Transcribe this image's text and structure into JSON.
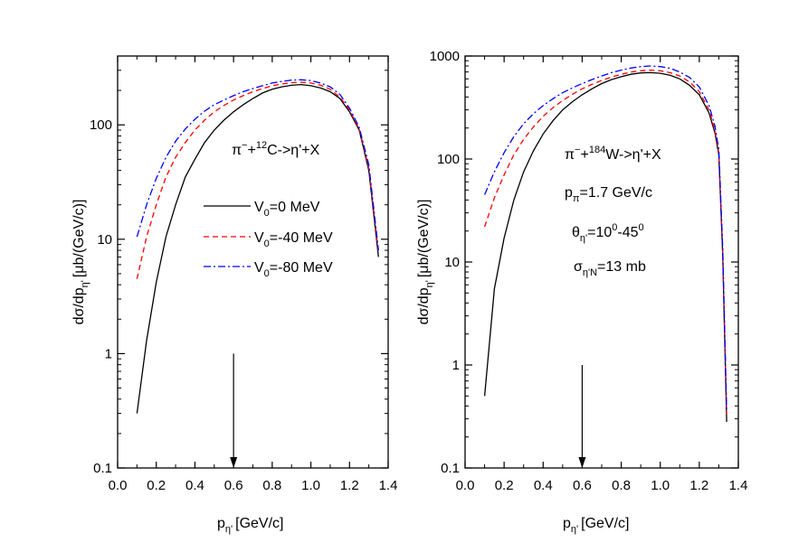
{
  "chart_data": [
    {
      "type": "line",
      "xlabel": "p",
      "xlabel_sub": "η'",
      "xlabel_unit": "[GeV/c]",
      "ylabel": "dσ/dp",
      "ylabel_sub": "η'",
      "ylabel_unit": "[μb/(GeV/c)]",
      "xlim": [
        0.0,
        1.4
      ],
      "ylim": [
        0.1,
        400
      ],
      "yscale": "log",
      "grid": false,
      "x_ticks": [
        "0.0",
        "0.2",
        "0.4",
        "0.6",
        "0.8",
        "1.0",
        "1.2",
        "1.4"
      ],
      "x_tick_values": [
        0.0,
        0.2,
        0.4,
        0.6,
        0.8,
        1.0,
        1.2,
        1.4
      ],
      "y_ticks": [
        "0.1",
        "1",
        "10",
        "100"
      ],
      "y_tick_values": [
        0.1,
        1,
        10,
        100
      ],
      "arrow": {
        "x": 0.6,
        "from_y": 1.0,
        "to_y": 0.1
      },
      "reaction": {
        "p1": "π",
        "p1_sup": "−",
        "p2": "+",
        "p2_sup": "12",
        "p3": "C->η'+X"
      },
      "legend_position": "center",
      "series": [
        {
          "name": "V",
          "name_sub": "0",
          "name_rest": "=0 MeV",
          "color": "#000000",
          "dash": "solid",
          "x": [
            0.1,
            0.15,
            0.2,
            0.25,
            0.3,
            0.35,
            0.4,
            0.45,
            0.5,
            0.55,
            0.6,
            0.65,
            0.7,
            0.75,
            0.8,
            0.85,
            0.9,
            0.95,
            1.0,
            1.05,
            1.1,
            1.15,
            1.2,
            1.25,
            1.3,
            1.35
          ],
          "values": [
            0.3,
            1.3,
            4.2,
            10.5,
            20,
            35,
            50,
            70,
            90,
            110,
            130,
            150,
            170,
            190,
            205,
            215,
            222,
            225,
            220,
            210,
            195,
            170,
            130,
            90,
            40,
            7
          ]
        },
        {
          "name": "V",
          "name_sub": "0",
          "name_rest": "=-40 MeV",
          "color": "#ff0000",
          "dash": "dashed",
          "x": [
            0.1,
            0.15,
            0.2,
            0.25,
            0.3,
            0.35,
            0.4,
            0.45,
            0.5,
            0.55,
            0.6,
            0.65,
            0.7,
            0.75,
            0.8,
            0.85,
            0.9,
            0.95,
            1.0,
            1.05,
            1.1,
            1.15,
            1.2,
            1.25,
            1.3,
            1.35
          ],
          "values": [
            4.5,
            10.5,
            20,
            35,
            52,
            70,
            90,
            110,
            130,
            148,
            165,
            180,
            195,
            208,
            220,
            228,
            234,
            236,
            232,
            222,
            205,
            175,
            135,
            92,
            42,
            7.5
          ]
        },
        {
          "name": "V",
          "name_sub": "0",
          "name_rest": "=-80 MeV",
          "color": "#0000ff",
          "dash": "dashdot",
          "x": [
            0.1,
            0.15,
            0.2,
            0.25,
            0.3,
            0.35,
            0.4,
            0.45,
            0.5,
            0.55,
            0.6,
            0.65,
            0.7,
            0.75,
            0.8,
            0.85,
            0.9,
            0.95,
            1.0,
            1.05,
            1.1,
            1.15,
            1.2,
            1.25,
            1.3,
            1.35
          ],
          "values": [
            10.5,
            20,
            34,
            52,
            72,
            92,
            112,
            132,
            150,
            165,
            180,
            195,
            208,
            220,
            232,
            240,
            246,
            248,
            244,
            232,
            215,
            185,
            140,
            95,
            45,
            8
          ]
        }
      ]
    },
    {
      "type": "line",
      "xlabel": "p",
      "xlabel_sub": "η'",
      "xlabel_unit": "[GeV/c]",
      "ylabel": "dσ/dp",
      "ylabel_sub": "η'",
      "ylabel_unit": "[μb/(GeV/c)]",
      "xlim": [
        0.0,
        1.4
      ],
      "ylim": [
        0.1,
        1000
      ],
      "yscale": "log",
      "grid": false,
      "x_ticks": [
        "0.0",
        "0.2",
        "0.4",
        "0.6",
        "0.8",
        "1.0",
        "1.2",
        "1.4"
      ],
      "x_tick_values": [
        0.0,
        0.2,
        0.4,
        0.6,
        0.8,
        1.0,
        1.2,
        1.4
      ],
      "y_ticks": [
        "0.1",
        "1",
        "10",
        "100",
        "1000"
      ],
      "y_tick_values": [
        0.1,
        1,
        10,
        100,
        1000
      ],
      "arrow": {
        "x": 0.6,
        "from_y": 1.0,
        "to_y": 0.1
      },
      "reaction": {
        "p1": "π",
        "p1_sup": "−",
        "p2": "+",
        "p2_sup": "184",
        "p3": "W->η'+X"
      },
      "annotations": [
        {
          "main": "p",
          "sub": "π",
          "rest": "=1.7 GeV/c"
        },
        {
          "main": "θ",
          "sub": "η'",
          "rest": "=10",
          "sup": "0",
          "rest2": "-45",
          "sup2": "0"
        },
        {
          "main": "σ",
          "sub": "η'N",
          "rest": "=13 mb"
        }
      ],
      "series": [
        {
          "color": "#000000",
          "dash": "solid",
          "x": [
            0.1,
            0.15,
            0.2,
            0.25,
            0.3,
            0.35,
            0.4,
            0.45,
            0.5,
            0.55,
            0.6,
            0.65,
            0.7,
            0.75,
            0.8,
            0.85,
            0.9,
            0.95,
            1.0,
            1.05,
            1.1,
            1.15,
            1.2,
            1.25,
            1.28,
            1.3,
            1.32,
            1.34
          ],
          "values": [
            0.5,
            5.5,
            17,
            40,
            75,
            120,
            175,
            235,
            300,
            360,
            420,
            480,
            540,
            590,
            630,
            665,
            685,
            690,
            680,
            650,
            600,
            520,
            420,
            280,
            180,
            110,
            12,
            0.28
          ]
        },
        {
          "color": "#ff0000",
          "dash": "dashed",
          "x": [
            0.1,
            0.15,
            0.2,
            0.25,
            0.3,
            0.35,
            0.4,
            0.45,
            0.5,
            0.55,
            0.6,
            0.65,
            0.7,
            0.75,
            0.8,
            0.85,
            0.9,
            0.95,
            1.0,
            1.05,
            1.1,
            1.15,
            1.2,
            1.25,
            1.28,
            1.3,
            1.32,
            1.34
          ],
          "values": [
            22,
            42,
            70,
            110,
            155,
            205,
            260,
            315,
            370,
            425,
            480,
            530,
            580,
            625,
            665,
            700,
            720,
            730,
            720,
            690,
            640,
            560,
            450,
            300,
            190,
            115,
            13,
            0.33
          ]
        },
        {
          "color": "#0000ff",
          "dash": "dashdot",
          "x": [
            0.1,
            0.15,
            0.2,
            0.25,
            0.3,
            0.35,
            0.4,
            0.45,
            0.5,
            0.55,
            0.6,
            0.65,
            0.7,
            0.75,
            0.8,
            0.85,
            0.9,
            0.95,
            1.0,
            1.05,
            1.1,
            1.15,
            1.2,
            1.25,
            1.28,
            1.3,
            1.32,
            1.34
          ],
          "values": [
            45,
            75,
            115,
            165,
            220,
            275,
            330,
            385,
            440,
            490,
            540,
            590,
            640,
            690,
            730,
            765,
            790,
            800,
            790,
            760,
            700,
            620,
            500,
            330,
            210,
            125,
            14,
            0.36
          ]
        }
      ]
    }
  ]
}
